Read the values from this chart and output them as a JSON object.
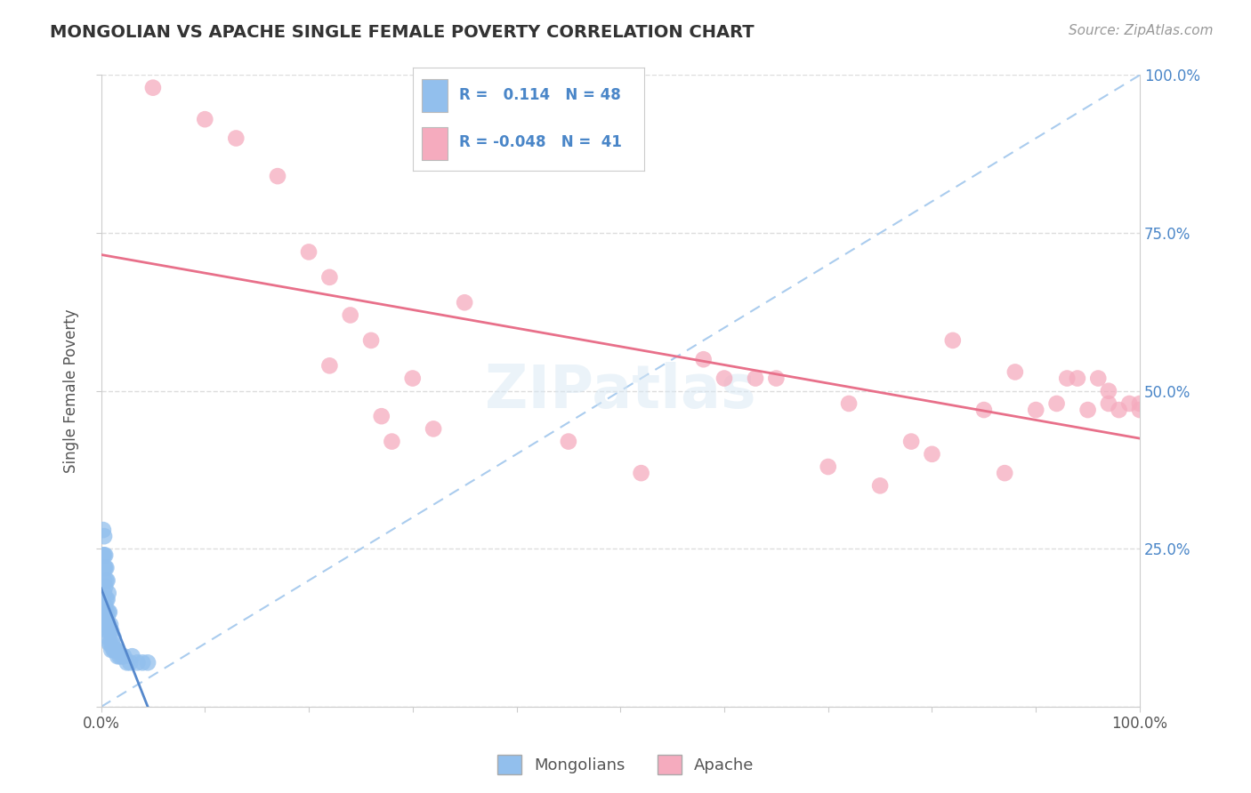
{
  "title": "MONGOLIAN VS APACHE SINGLE FEMALE POVERTY CORRELATION CHART",
  "source": "Source: ZipAtlas.com",
  "ylabel": "Single Female Poverty",
  "xlim": [
    0,
    1.0
  ],
  "ylim": [
    0,
    1.0
  ],
  "legend_r_mongolian": " 0.114",
  "legend_n_mongolian": "48",
  "legend_r_apache": "-0.048",
  "legend_n_apache": "41",
  "mongolian_color": "#92bfed",
  "apache_color": "#f5abbe",
  "mongolian_line_color": "#5588cc",
  "apache_line_color": "#e8708a",
  "diagonal_color": "#aaccee",
  "background_color": "#ffffff",
  "grid_color": "#dddddd",
  "mongolian_x": [
    0.002,
    0.002,
    0.003,
    0.003,
    0.003,
    0.003,
    0.003,
    0.004,
    0.004,
    0.004,
    0.004,
    0.004,
    0.005,
    0.005,
    0.005,
    0.005,
    0.005,
    0.006,
    0.006,
    0.006,
    0.006,
    0.007,
    0.007,
    0.007,
    0.007,
    0.008,
    0.008,
    0.008,
    0.009,
    0.009,
    0.01,
    0.01,
    0.011,
    0.012,
    0.012,
    0.013,
    0.014,
    0.015,
    0.016,
    0.018,
    0.02,
    0.022,
    0.025,
    0.028,
    0.03,
    0.035,
    0.04,
    0.045
  ],
  "mongolian_y": [
    0.24,
    0.28,
    0.18,
    0.2,
    0.22,
    0.24,
    0.27,
    0.14,
    0.16,
    0.19,
    0.22,
    0.24,
    0.13,
    0.15,
    0.17,
    0.2,
    0.22,
    0.12,
    0.14,
    0.17,
    0.2,
    0.11,
    0.13,
    0.15,
    0.18,
    0.1,
    0.12,
    0.15,
    0.1,
    0.13,
    0.09,
    0.12,
    0.1,
    0.09,
    0.11,
    0.09,
    0.09,
    0.09,
    0.08,
    0.08,
    0.08,
    0.08,
    0.07,
    0.07,
    0.08,
    0.07,
    0.07,
    0.07
  ],
  "apache_x": [
    0.05,
    0.1,
    0.13,
    0.17,
    0.2,
    0.22,
    0.22,
    0.24,
    0.26,
    0.27,
    0.28,
    0.3,
    0.32,
    0.35,
    0.45,
    0.52,
    0.58,
    0.6,
    0.63,
    0.65,
    0.7,
    0.72,
    0.75,
    0.78,
    0.8,
    0.82,
    0.85,
    0.87,
    0.88,
    0.9,
    0.92,
    0.93,
    0.94,
    0.95,
    0.96,
    0.97,
    0.97,
    0.98,
    0.99,
    1.0,
    1.0
  ],
  "apache_y": [
    0.98,
    0.93,
    0.9,
    0.84,
    0.72,
    0.68,
    0.54,
    0.62,
    0.58,
    0.46,
    0.42,
    0.52,
    0.44,
    0.64,
    0.42,
    0.37,
    0.55,
    0.52,
    0.52,
    0.52,
    0.38,
    0.48,
    0.35,
    0.42,
    0.4,
    0.58,
    0.47,
    0.37,
    0.53,
    0.47,
    0.48,
    0.52,
    0.52,
    0.47,
    0.52,
    0.5,
    0.48,
    0.47,
    0.48,
    0.48,
    0.47
  ]
}
